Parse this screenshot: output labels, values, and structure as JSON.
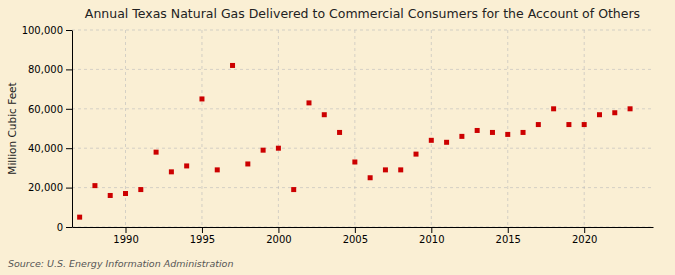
{
  "chart_data": {
    "type": "scatter",
    "title": "Annual Texas Natural Gas Delivered to Commercial Consumers for the Account of Others",
    "ylabel": "Million Cubic Feet",
    "annotations": [
      "Source: U.S. Energy Information Administration"
    ],
    "x": [
      1987,
      1988,
      1989,
      1990,
      1991,
      1992,
      1993,
      1994,
      1995,
      1996,
      1997,
      1998,
      1999,
      2000,
      2001,
      2002,
      2003,
      2004,
      2005,
      2006,
      2007,
      2008,
      2009,
      2010,
      2011,
      2012,
      2013,
      2014,
      2015,
      2016,
      2017,
      2018,
      2019,
      2020,
      2021,
      2022,
      2023
    ],
    "values": [
      5000,
      21000,
      16000,
      17000,
      19000,
      38000,
      28000,
      31000,
      65000,
      29000,
      82000,
      32000,
      39000,
      40000,
      19000,
      63000,
      57000,
      48000,
      33000,
      25000,
      29000,
      29000,
      37000,
      44000,
      43000,
      46000,
      49000,
      48000,
      47000,
      48000,
      52000,
      60000,
      52000,
      52000,
      57000,
      58000,
      60000
    ],
    "color": "#cc0000",
    "marker": "square",
    "xlim": [
      1986.5,
      2024.5
    ],
    "xticks": [
      1990,
      1995,
      2000,
      2005,
      2010,
      2015,
      2020
    ],
    "ylim": [
      0,
      100000
    ],
    "yticks": [
      0,
      {
        "value": 20000,
        "label": "20,000"
      },
      {
        "value": 40000,
        "label": "40,000"
      },
      {
        "value": 60000,
        "label": "60,000"
      },
      {
        "value": 80000,
        "label": "80,000"
      },
      {
        "value": 100000,
        "label": "100,000"
      }
    ],
    "grid": true
  }
}
